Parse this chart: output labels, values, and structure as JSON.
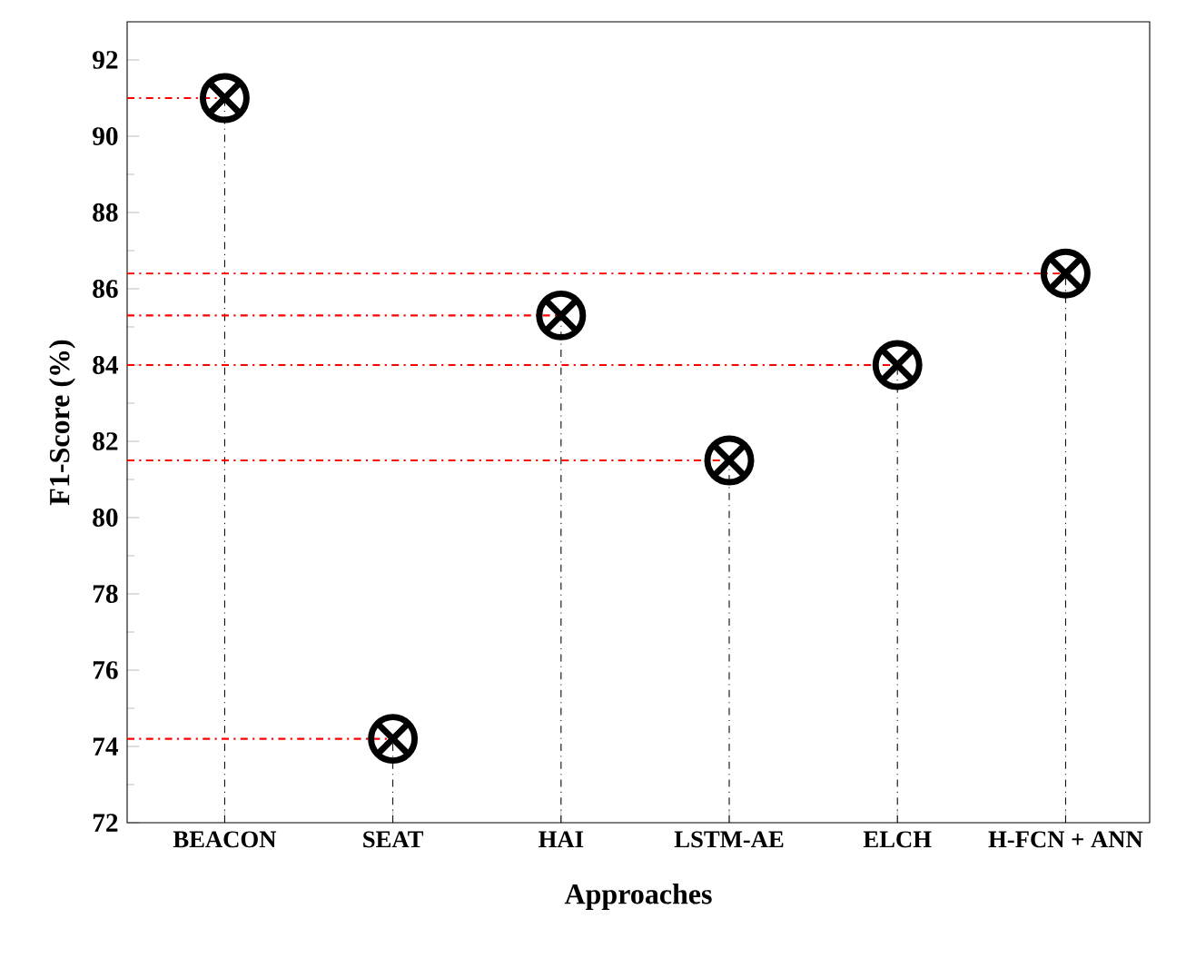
{
  "chart_data": {
    "type": "lollipop",
    "xlabel": "Approaches",
    "ylabel": "F1-Score (%)",
    "categories": [
      "BEACON",
      "SEAT",
      "HAI",
      "LSTM-AE",
      "ELCH",
      "H-FCN + ANN"
    ],
    "values": [
      91.0,
      74.2,
      85.3,
      81.5,
      84.0,
      86.4
    ],
    "color": "#000000",
    "marker": "cross",
    "ref_lines": [
      {
        "axis": "y",
        "value": 91.0,
        "color": "#ff0000"
      },
      {
        "axis": "y",
        "value": 74.2,
        "color": "#ff0000"
      },
      {
        "axis": "y",
        "value": 85.3,
        "color": "#ff0000"
      },
      {
        "axis": "y",
        "value": 81.5,
        "color": "#ff0000"
      },
      {
        "axis": "y",
        "value": 84.0,
        "color": "#ff0000"
      },
      {
        "axis": "y",
        "value": 86.4,
        "color": "#ff0000"
      }
    ],
    "ylim": [
      72,
      93
    ],
    "yticks": [
      72,
      74,
      76,
      78,
      80,
      82,
      84,
      86,
      88,
      90,
      92
    ]
  }
}
